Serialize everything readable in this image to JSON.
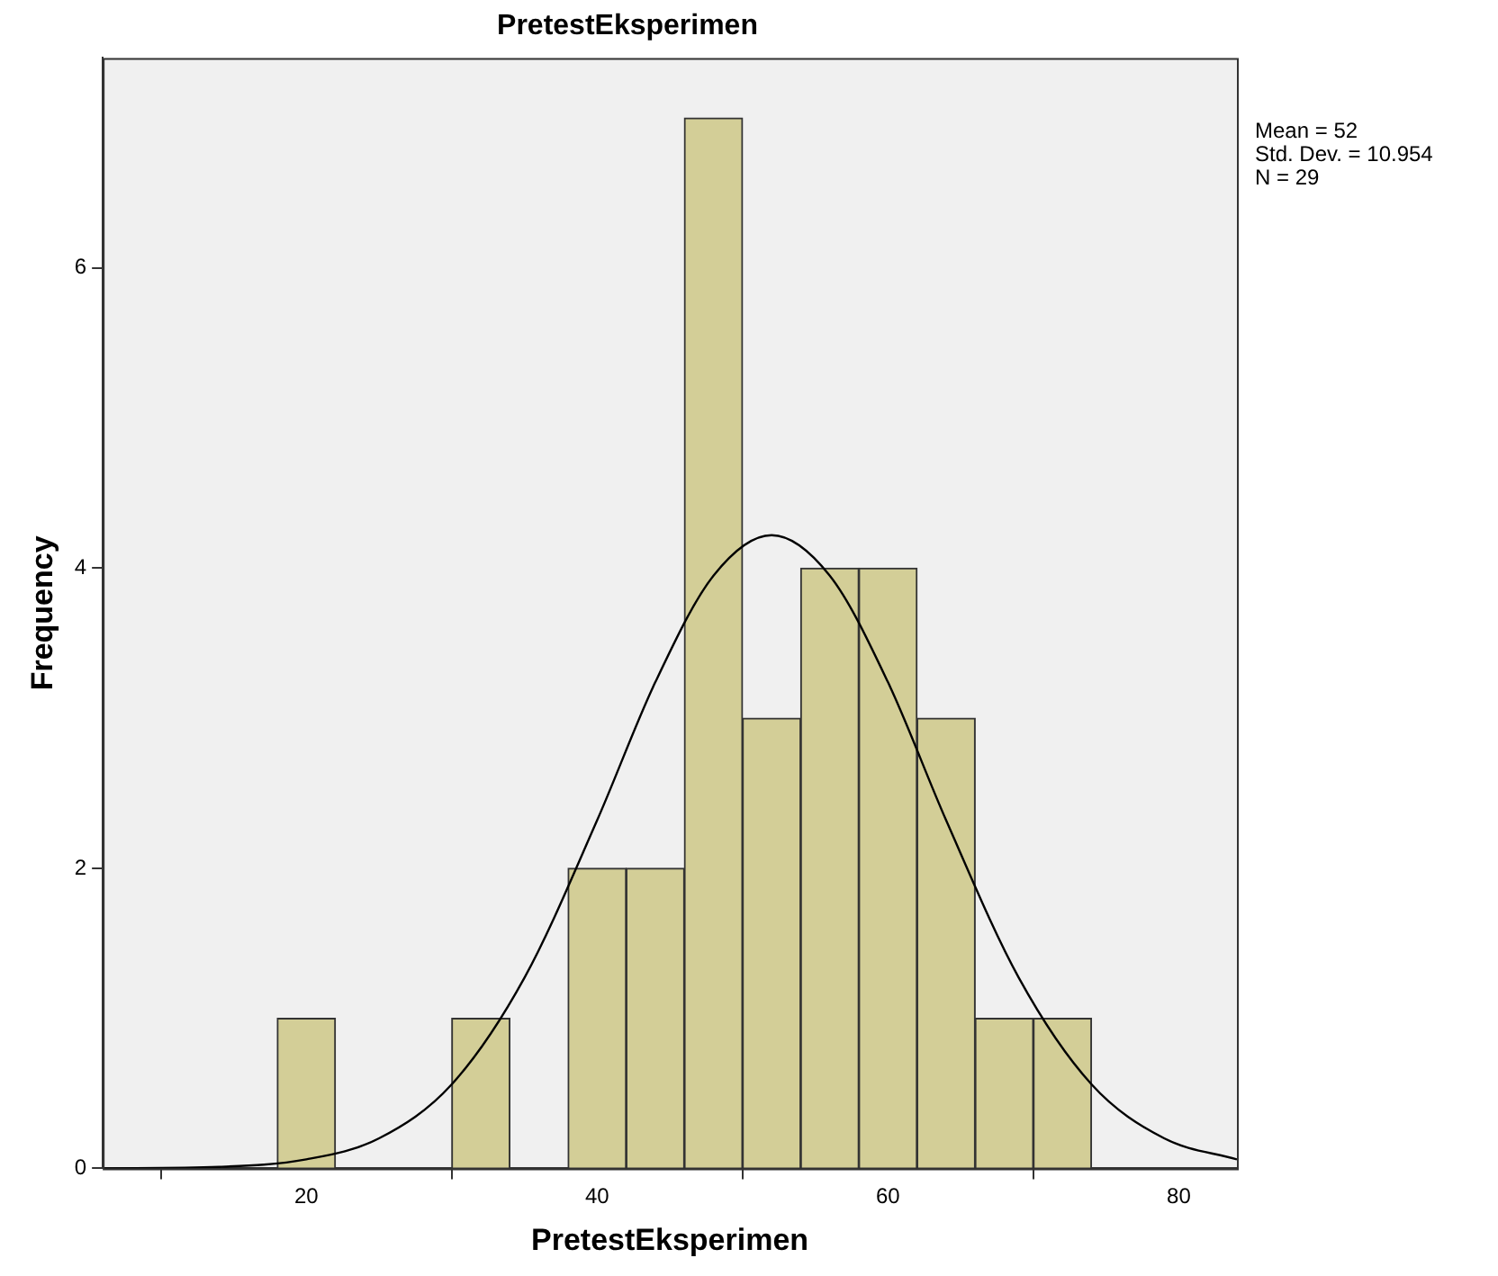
{
  "chart_data": {
    "type": "histogram",
    "title": "PretestEksperimen",
    "xlabel": "PretestEksperimen",
    "ylabel": "Frequency",
    "bins": [
      18,
      22,
      26,
      30,
      34,
      38,
      42,
      46,
      50,
      54,
      58,
      62,
      66,
      70,
      74
    ],
    "values": [
      1,
      0,
      0,
      1,
      0,
      2,
      2,
      7,
      3,
      4,
      4,
      3,
      1,
      1
    ],
    "color": "#d3ce97",
    "xlim": [
      6,
      84
    ],
    "xticks": [
      20,
      40,
      60,
      80
    ],
    "ylim": [
      0,
      7.4
    ],
    "yticks": [
      0,
      2,
      4,
      6
    ],
    "grid": false,
    "legend": false,
    "marker": "none",
    "series": [
      {
        "type": "line",
        "color": "#000000",
        "x": [
          6,
          14,
          20,
          25,
          30,
          35,
          40,
          44,
          48,
          52,
          56,
          60,
          64,
          69,
          74,
          79,
          84
        ],
        "values": [
          0.0,
          0.01,
          0.06,
          0.2,
          0.56,
          1.27,
          2.32,
          3.24,
          3.95,
          4.22,
          3.95,
          3.24,
          2.32,
          1.27,
          0.56,
          0.2,
          0.06
        ]
      }
    ],
    "annotations": [
      "Mean = 52",
      "Std. Dev. = 10.954",
      "N = 29"
    ]
  }
}
